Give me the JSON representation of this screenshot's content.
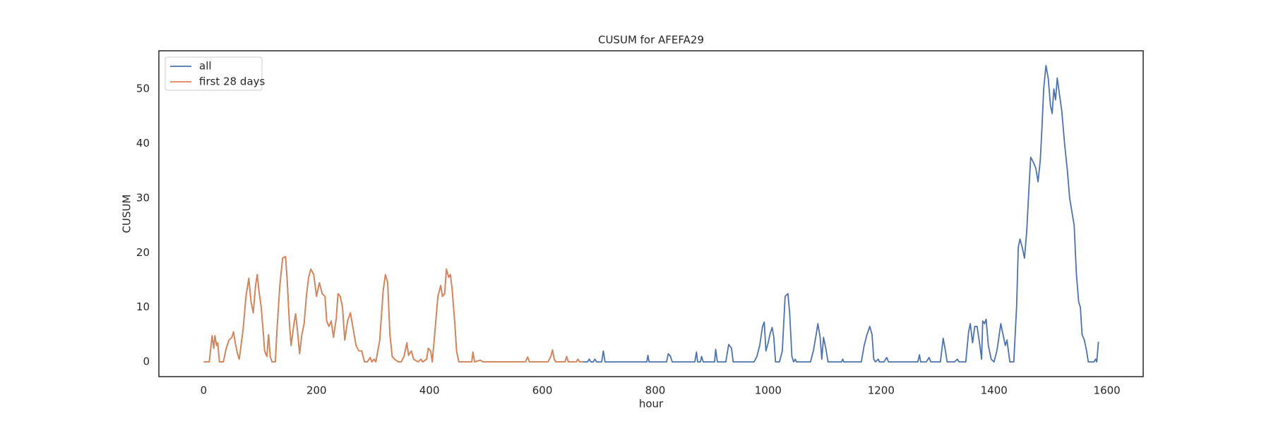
{
  "chart_data": {
    "type": "line",
    "title": "CUSUM for AFEFA29",
    "x_label": "hour",
    "y_label": "CUSUM",
    "xlim": [
      -79.25,
      1664.25
    ],
    "ylim": [
      -2.7,
      57
    ],
    "xticks": [
      0,
      200,
      400,
      600,
      800,
      1000,
      1200,
      1400,
      1600
    ],
    "yticks": [
      0,
      10,
      20,
      30,
      40,
      50
    ],
    "legend": "upper left",
    "grid": false,
    "x": [
      0,
      10,
      15,
      18,
      20,
      23,
      25,
      28,
      35,
      40,
      45,
      50,
      53,
      56,
      60,
      63,
      65,
      70,
      75,
      80,
      84,
      88,
      92,
      95,
      98,
      102,
      106,
      108,
      112,
      115,
      118,
      121,
      127,
      130,
      135,
      140,
      145,
      148,
      152,
      155,
      160,
      163,
      166,
      170,
      174,
      178,
      182,
      186,
      190,
      195,
      200,
      205,
      210,
      215,
      218,
      222,
      226,
      230,
      235,
      238,
      242,
      246,
      250,
      255,
      260,
      265,
      270,
      275,
      280,
      285,
      290,
      295,
      298,
      302,
      305,
      312,
      318,
      322,
      326,
      330,
      334,
      338,
      345,
      350,
      355,
      360,
      363,
      368,
      372,
      380,
      385,
      388,
      395,
      398,
      402,
      405,
      410,
      415,
      420,
      423,
      427,
      430,
      434,
      437,
      440,
      445,
      448,
      452,
      460,
      475,
      477,
      480,
      490,
      495,
      520,
      570,
      574,
      577,
      610,
      615,
      618,
      621,
      624,
      640,
      643,
      646,
      660,
      663,
      666,
      672,
      680,
      683,
      686,
      690,
      693,
      696,
      705,
      708,
      711,
      785,
      787,
      789,
      820,
      823,
      827,
      830,
      845,
      870,
      873,
      875,
      880,
      882,
      885,
      905,
      907,
      910,
      925,
      930,
      935,
      938,
      975,
      980,
      985,
      990,
      993,
      996,
      1000,
      1003,
      1007,
      1010,
      1013,
      1020,
      1025,
      1030,
      1035,
      1038,
      1042,
      1045,
      1048,
      1050,
      1075,
      1080,
      1085,
      1088,
      1092,
      1095,
      1098,
      1102,
      1106,
      1130,
      1132,
      1134,
      1165,
      1170,
      1175,
      1180,
      1184,
      1187,
      1190,
      1195,
      1197,
      1205,
      1210,
      1213,
      1265,
      1268,
      1270,
      1280,
      1285,
      1288,
      1305,
      1310,
      1314,
      1317,
      1330,
      1335,
      1338,
      1350,
      1355,
      1358,
      1362,
      1366,
      1370,
      1375,
      1378,
      1380,
      1383,
      1386,
      1390,
      1395,
      1400,
      1405,
      1408,
      1412,
      1416,
      1420,
      1423,
      1428,
      1435,
      1440,
      1443,
      1446,
      1450,
      1454,
      1458,
      1462,
      1465,
      1470,
      1474,
      1478,
      1482,
      1485,
      1488,
      1492,
      1496,
      1500,
      1503,
      1506,
      1509,
      1512,
      1516,
      1520,
      1525,
      1530,
      1534,
      1538,
      1542,
      1546,
      1550,
      1553,
      1556,
      1560,
      1564,
      1567,
      1572,
      1577,
      1580,
      1582,
      1585
    ],
    "series": [
      {
        "name": "all",
        "color": "#4c72b0",
        "values": [
          0,
          0,
          4.8,
          2.5,
          4.8,
          3,
          3.5,
          0,
          0,
          2.5,
          4,
          4.5,
          5.5,
          3.5,
          1.5,
          0.5,
          2,
          6,
          12,
          15.3,
          11,
          9,
          14,
          16,
          13,
          10,
          5,
          2,
          1,
          5,
          1,
          0,
          0,
          6,
          14,
          19,
          19.3,
          15,
          7,
          3,
          7,
          8.8,
          6,
          1.5,
          5,
          7,
          12,
          15.5,
          17,
          16,
          12,
          14.5,
          12.5,
          12,
          7.5,
          6.5,
          7.5,
          4.5,
          8,
          12.5,
          12,
          10,
          4,
          7.5,
          9,
          6,
          3,
          2,
          2,
          0,
          0,
          0.8,
          0,
          0.5,
          0,
          4,
          13,
          16,
          14.5,
          5,
          1,
          0.5,
          0,
          0,
          1,
          3.5,
          1.2,
          2,
          0.5,
          0,
          0.5,
          0,
          0.5,
          2.5,
          2,
          0,
          6,
          12,
          14,
          12,
          12.5,
          17,
          15.5,
          16,
          13.5,
          7,
          2,
          0,
          0,
          0,
          1.8,
          0,
          0.3,
          0,
          0,
          0,
          0.9,
          0,
          0,
          1,
          2.2,
          0.5,
          0,
          0,
          1,
          0,
          0,
          0.5,
          0,
          0,
          0,
          0.5,
          0,
          0,
          0.5,
          0,
          0,
          2,
          0,
          0,
          1.2,
          0,
          0,
          1.5,
          1,
          0,
          0,
          0,
          1.8,
          0,
          0,
          1,
          0,
          0,
          2.3,
          0,
          0,
          3.2,
          2.5,
          0,
          0,
          1,
          3,
          6.5,
          7.3,
          2,
          3.5,
          5,
          6.3,
          4.5,
          0,
          0,
          2,
          12,
          12.5,
          9,
          1,
          0,
          0.5,
          0,
          0,
          2,
          5,
          7,
          4.5,
          0.5,
          4.5,
          2.5,
          0,
          0,
          0.5,
          0,
          0,
          3,
          5,
          6.5,
          5,
          0.5,
          0,
          0.5,
          0,
          0,
          0.8,
          0,
          0,
          1.3,
          0,
          0,
          0.8,
          0,
          0,
          4.3,
          2,
          0,
          0,
          0.5,
          0,
          0,
          5.5,
          7,
          3.5,
          6.5,
          6.5,
          3,
          0.5,
          7.5,
          7,
          7.8,
          3,
          0.5,
          0,
          2,
          4,
          7,
          5,
          3,
          4,
          0,
          0,
          10,
          21,
          22.5,
          21,
          19,
          24,
          32,
          37.5,
          36.5,
          35.5,
          33,
          37,
          43,
          50,
          54.3,
          52,
          47,
          45.5,
          50,
          48,
          52,
          49,
          46,
          40,
          35,
          30,
          27.5,
          25,
          16,
          11,
          10,
          5,
          4,
          2,
          0,
          0,
          0,
          0.5,
          0,
          3.7
        ]
      },
      {
        "name": "first 28 days",
        "color": "#dd8452",
        "values": [
          0,
          0,
          4.8,
          2.5,
          4.8,
          3,
          3.5,
          0,
          0,
          2.5,
          4,
          4.5,
          5.5,
          3.5,
          1.5,
          0.5,
          2,
          6,
          12,
          15.3,
          11,
          9,
          14,
          16,
          13,
          10,
          5,
          2,
          1,
          5,
          1,
          0,
          0,
          6,
          14,
          19,
          19.3,
          15,
          7,
          3,
          7,
          8.8,
          6,
          1.5,
          5,
          7,
          12,
          15.5,
          17,
          16,
          12,
          14.5,
          12.5,
          12,
          7.5,
          6.5,
          7.5,
          4.5,
          8,
          12.5,
          12,
          10,
          4,
          7.5,
          9,
          6,
          3,
          2,
          2,
          0,
          0,
          0.8,
          0,
          0.5,
          0,
          4,
          13,
          16,
          14.5,
          5,
          1,
          0.5,
          0,
          0,
          1,
          3.5,
          1.2,
          2,
          0.5,
          0,
          0.5,
          0,
          0.5,
          2.5,
          2,
          0,
          6,
          12,
          14,
          12,
          12.5,
          17,
          15.5,
          16,
          13.5,
          7,
          2,
          0,
          0,
          0,
          1.8,
          0,
          0.3,
          0,
          0,
          0,
          0.9,
          0,
          0,
          1,
          2.2,
          0.5,
          0,
          0,
          1,
          0,
          0,
          0.5,
          0,
          0,
          null,
          null,
          null,
          null,
          null,
          null,
          null,
          null,
          null,
          null,
          null,
          null,
          null,
          null,
          null,
          null,
          null,
          null,
          null,
          null,
          null,
          null,
          null,
          null,
          null,
          null,
          null,
          null,
          null,
          null,
          null,
          null,
          null,
          null,
          null,
          null,
          null,
          null,
          null,
          null,
          null,
          null,
          null,
          null,
          null,
          null,
          null,
          null,
          null,
          null,
          null,
          null,
          null,
          null,
          null,
          null,
          null,
          null,
          null,
          null,
          null,
          null,
          null,
          null,
          null,
          null,
          null,
          null,
          null,
          null,
          null,
          null,
          null,
          null,
          null,
          null,
          null,
          null,
          null,
          null,
          null,
          null,
          null,
          null,
          null,
          null,
          null,
          null,
          null,
          null,
          null,
          null,
          null,
          null,
          null,
          null,
          null,
          null,
          null,
          null,
          null,
          null,
          null,
          null,
          null,
          null,
          null,
          null,
          null,
          null,
          null,
          null,
          null,
          null,
          null,
          null,
          null,
          null,
          null,
          null,
          null,
          null,
          null,
          null,
          null,
          null,
          null,
          null,
          null,
          null,
          null,
          null,
          null,
          null,
          null,
          null,
          null,
          null,
          null,
          null,
          null,
          null,
          null,
          null,
          null,
          null,
          null,
          null,
          null
        ]
      }
    ]
  }
}
